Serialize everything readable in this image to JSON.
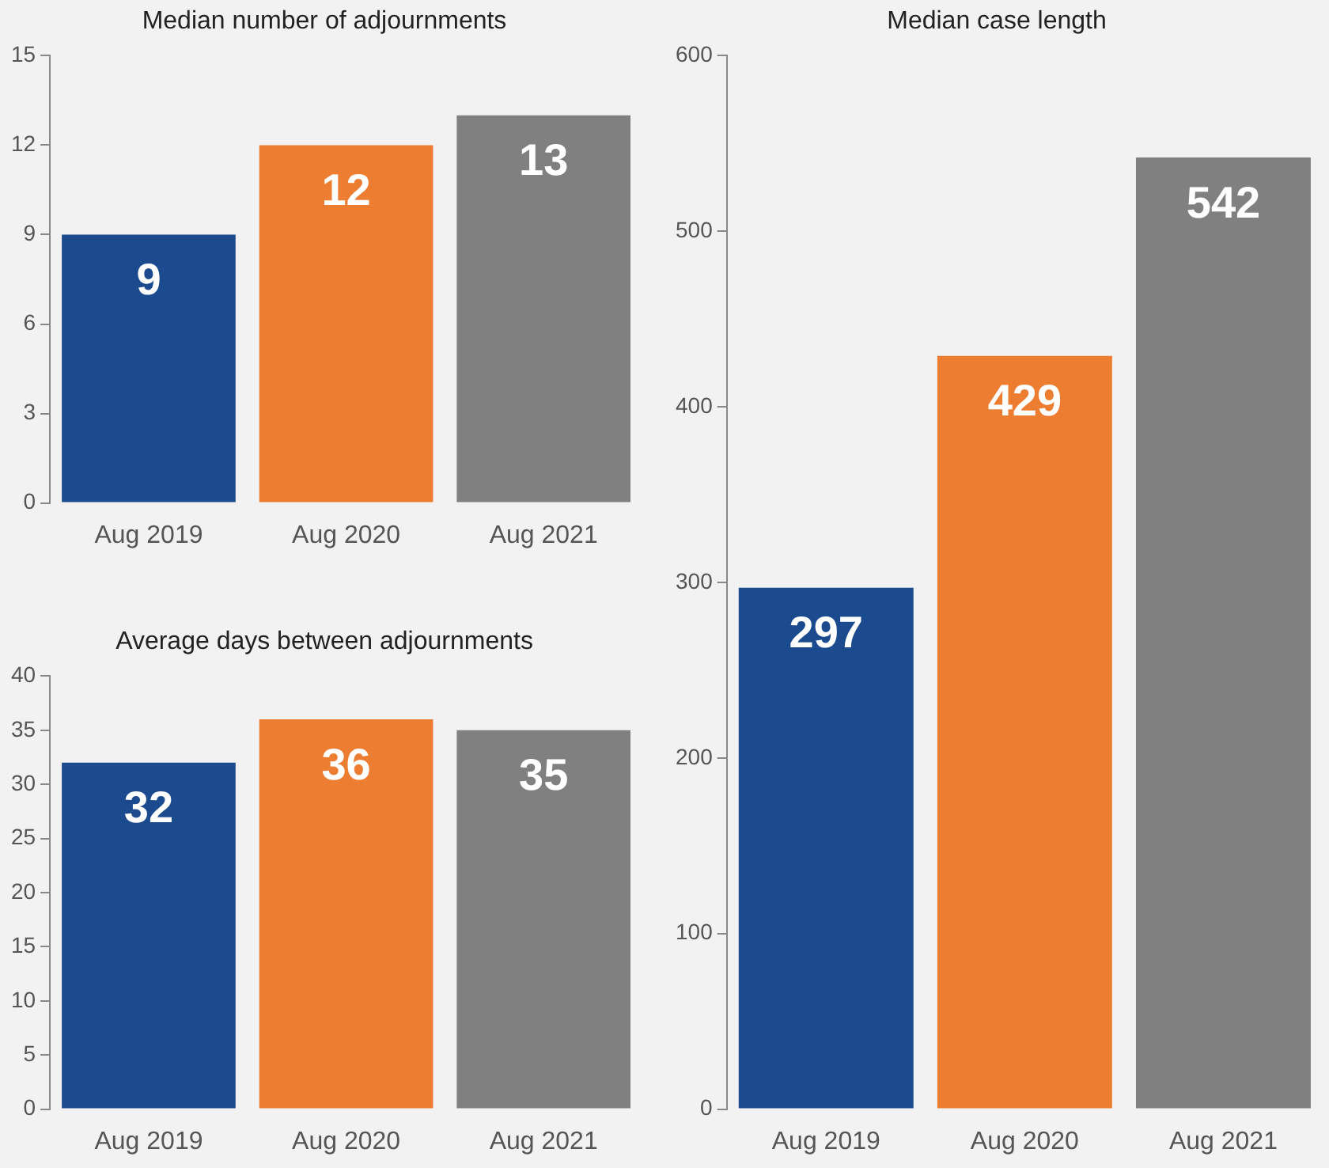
{
  "chart_data": [
    {
      "type": "bar",
      "title": "Median number of adjournments",
      "categories": [
        "Aug 2019",
        "Aug 2020",
        "Aug 2021"
      ],
      "values": [
        9,
        12,
        13
      ],
      "colors": [
        "#1c4a8e",
        "#ed7d31",
        "#808080"
      ],
      "ylim": [
        0,
        15
      ],
      "yticks": [
        0,
        3,
        6,
        9,
        12,
        15
      ],
      "data_labels": true,
      "legend": false,
      "grid": false
    },
    {
      "type": "bar",
      "title": "Median case length",
      "categories": [
        "Aug 2019",
        "Aug 2020",
        "Aug 2021"
      ],
      "values": [
        297,
        429,
        542
      ],
      "colors": [
        "#1c4a8e",
        "#ed7d31",
        "#808080"
      ],
      "ylim": [
        0,
        600
      ],
      "yticks": [
        0,
        100,
        200,
        300,
        400,
        500,
        600
      ],
      "data_labels": true,
      "legend": false,
      "grid": false
    },
    {
      "type": "bar",
      "title": "Average days between adjournments",
      "categories": [
        "Aug 2019",
        "Aug 2020",
        "Aug 2021"
      ],
      "values": [
        32,
        36,
        35
      ],
      "colors": [
        "#1c4a8e",
        "#ed7d31",
        "#808080"
      ],
      "ylim": [
        0,
        40
      ],
      "yticks": [
        0,
        5,
        10,
        15,
        20,
        25,
        30,
        35,
        40
      ],
      "data_labels": true,
      "legend": false,
      "grid": false
    }
  ]
}
